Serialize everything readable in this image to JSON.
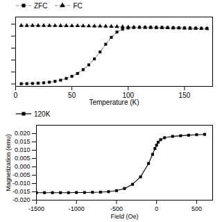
{
  "chart_data": [
    {
      "type": "line",
      "xlabel": "Temperature (K)",
      "x": [
        5,
        10,
        15,
        20,
        25,
        30,
        35,
        40,
        45,
        50,
        55,
        60,
        65,
        70,
        75,
        80,
        85,
        90,
        95,
        100,
        105,
        110,
        115,
        120,
        125,
        130,
        135,
        140,
        145,
        150,
        155,
        160,
        165,
        170
      ],
      "xlim": [
        0,
        175
      ],
      "xticks": [
        0,
        50,
        100,
        150
      ],
      "ylim": [
        -0.001,
        0.028
      ],
      "yticks": [
        0,
        0.005,
        0.01,
        0.015,
        0.02,
        0.025
      ],
      "tick_labels": "x",
      "legend": "upper left",
      "grid": false,
      "series": [
        {
          "name": "ZFC",
          "color": "#888888",
          "line_style": "dashed",
          "marker": "square",
          "values": [
            0.0001,
            0.00015,
            0.00022,
            0.00033,
            0.0005,
            0.00075,
            0.0011,
            0.0016,
            0.0023,
            0.0032,
            0.0044,
            0.006,
            0.008,
            0.0105,
            0.0134,
            0.0166,
            0.0195,
            0.0217,
            0.0229,
            0.0234,
            0.0236,
            0.02368,
            0.0237,
            0.0237,
            0.02368,
            0.02365,
            0.0236,
            0.02355,
            0.0235,
            0.02345,
            0.0234,
            0.02335,
            0.0233,
            0.02325
          ]
        },
        {
          "name": "FC",
          "color": "#888888",
          "line_style": "dashed",
          "marker": "triangle",
          "values": [
            0.0244,
            0.0244,
            0.0244,
            0.0244,
            0.0244,
            0.02438,
            0.02436,
            0.02434,
            0.02432,
            0.0243,
            0.02428,
            0.02425,
            0.02422,
            0.02418,
            0.02414,
            0.0241,
            0.02405,
            0.02398,
            0.0239,
            0.0238,
            0.0237,
            0.02365,
            0.02362,
            0.0236,
            0.02355,
            0.0235,
            0.02345,
            0.0234,
            0.02335,
            0.0233,
            0.02325,
            0.0232,
            0.02315,
            0.0231
          ]
        }
      ]
    },
    {
      "type": "line",
      "xlabel": "Field (Oe)",
      "ylabel": "Magnetization (emu)",
      "x": [
        -1500,
        -1400,
        -1300,
        -1200,
        -1100,
        -1000,
        -900,
        -800,
        -700,
        -600,
        -500,
        -400,
        -300,
        -200,
        -100,
        -50,
        -20,
        0,
        20,
        50,
        100,
        200,
        300,
        400,
        500,
        600
      ],
      "xlim": [
        -1500,
        700
      ],
      "xticks": [
        -1500,
        -1000,
        -500,
        0,
        500
      ],
      "ylim": [
        -0.02,
        0.025
      ],
      "yticks": [
        {
          "value": -0.02,
          "label": "-0.020"
        },
        -0.015,
        {
          "value": -0.01,
          "label": "-0.010"
        },
        -0.005,
        {
          "value": 0,
          "label": "0.000"
        },
        0.005,
        {
          "value": 0.01,
          "label": "0.010"
        },
        0.015,
        {
          "value": 0.02,
          "label": "0.020"
        }
      ],
      "legend": "upper left",
      "grid": false,
      "series": [
        {
          "name": "120K",
          "color": "black",
          "line_style": "solid",
          "marker": "square",
          "values": [
            -0.0155,
            -0.0155,
            -0.0155,
            -0.0155,
            -0.0155,
            -0.0154,
            -0.0154,
            -0.0153,
            -0.0152,
            -0.0149,
            -0.0143,
            -0.013,
            -0.0105,
            -0.006,
            0.002,
            0.0075,
            0.011,
            0.013,
            0.0148,
            0.0163,
            0.0175,
            0.0183,
            0.0187,
            0.019,
            0.0193,
            0.0195
          ]
        }
      ]
    }
  ]
}
